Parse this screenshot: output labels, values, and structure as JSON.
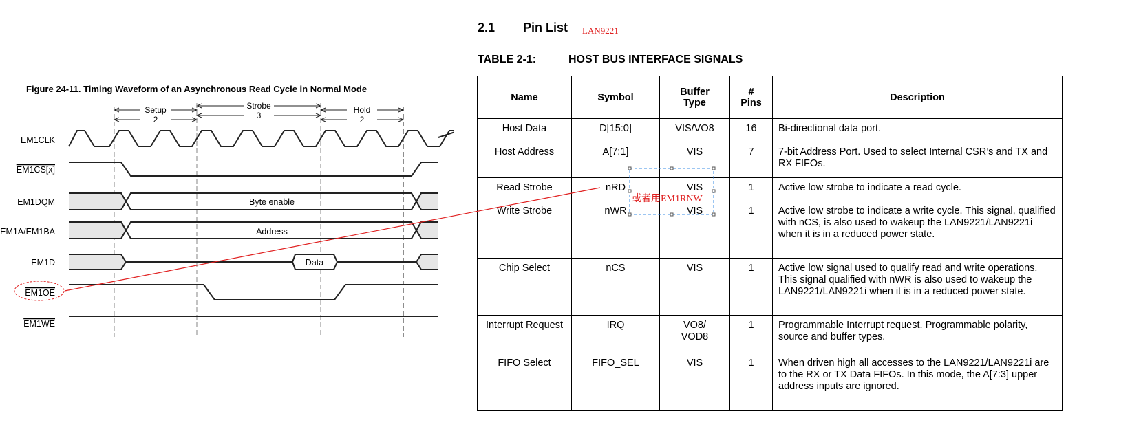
{
  "figure": {
    "title": "Figure 24-11. Timing Waveform of an Asynchronous Read Cycle in Normal Mode",
    "phases": [
      {
        "label": "Setup",
        "cycles": "2"
      },
      {
        "label": "Strobe",
        "cycles": "3"
      },
      {
        "label": "Hold",
        "cycles": "2"
      }
    ],
    "signals": [
      "EM1CLK",
      "EM1CS[x]",
      "EM1DQM",
      "EM1A/EM1BA",
      "EM1D",
      "EM1OE",
      "EM1WE"
    ],
    "bus_labels": {
      "dqm": "Byte enable",
      "addr": "Address",
      "data": "Data"
    },
    "fill_color": "#e6e6e6"
  },
  "section": {
    "number": "2.1",
    "title": "Pin List",
    "note": "LAN9221"
  },
  "table": {
    "caption": "TABLE 2-1:",
    "title": "HOST BUS INTERFACE SIGNALS",
    "headers": [
      [
        "Name"
      ],
      [
        "Symbol"
      ],
      [
        "Buffer",
        "Type"
      ],
      [
        "#",
        "Pins"
      ],
      [
        "Description"
      ]
    ],
    "rows": [
      [
        "Host Data",
        "D[15:0]",
        "VIS/VO8",
        "16",
        "Bi-directional data port."
      ],
      [
        "Host Address",
        "A[7:1]",
        "VIS",
        "7",
        "7-bit Address Port. Used to select Internal CSR’s and TX and RX FIFOs."
      ],
      [
        "Read Strobe",
        "nRD",
        "VIS",
        "1",
        "Active low strobe to indicate a read cycle."
      ],
      [
        "Write Strobe",
        "nWR",
        "VIS",
        "1",
        "Active low strobe to indicate a write cycle. This signal, qualified with nCS, is also used to wakeup the LAN9221/LAN9221i when it is in a reduced power state."
      ],
      [
        "Chip Select",
        "nCS",
        "VIS",
        "1",
        "Active low signal used to qualify read and write operations. This signal qualified with nWR is also used to wakeup the LAN9221/LAN9221i when it is in a reduced power state."
      ],
      [
        "Interrupt Request",
        "IRQ",
        "VO8/ VOD8",
        "1",
        "Programmable Interrupt request. Programmable polarity, source and buffer types."
      ],
      [
        "FIFO Select",
        "FIFO_SEL",
        "VIS",
        "1",
        "When driven high all accesses to the LAN9221/LAN9221i are to the RX or TX Data FIFOs. In this mode, the A[7:3] upper address inputs are ignored."
      ]
    ]
  },
  "annotation": {
    "text": "或者用EM1RNW",
    "color": "#e02020",
    "box_color": "#3a8ee6"
  }
}
